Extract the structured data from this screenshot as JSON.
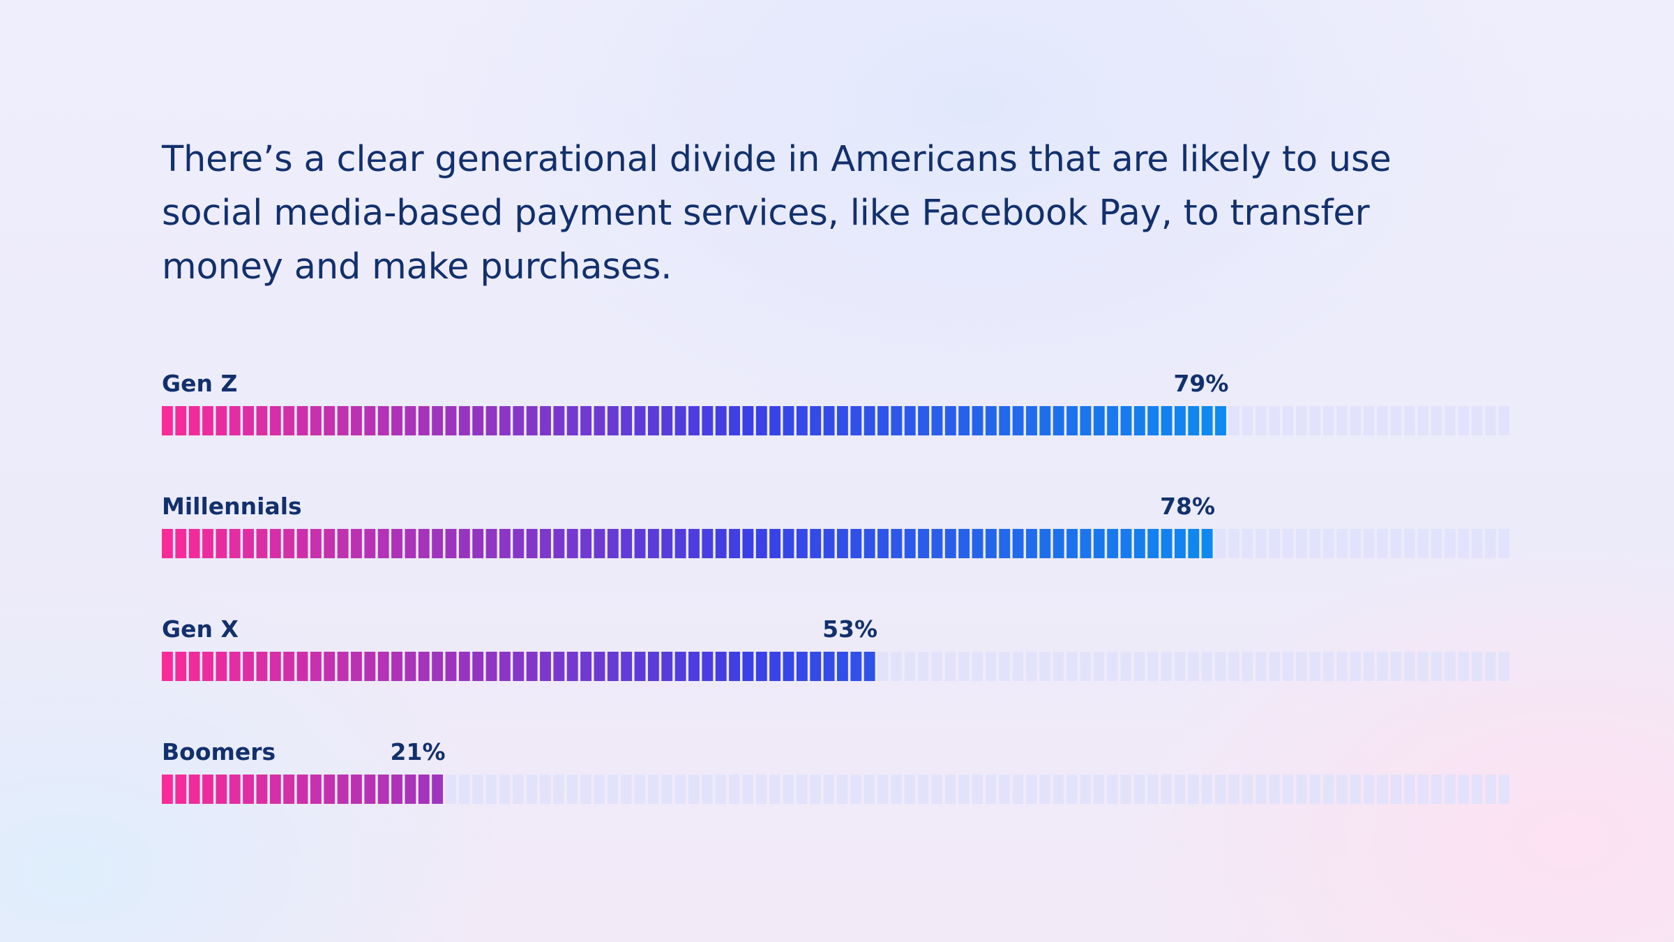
{
  "headline": "There’s a clear generational divide in Americans that are likely to use social media-based payment services, like Facebook Pay, to transfer money and make purchases.",
  "chart_data": {
    "type": "bar",
    "orientation": "horizontal",
    "title": "There’s a clear generational divide in Americans that are likely to use social media-based payment services, like Facebook Pay, to transfer money and make purchases.",
    "categories": [
      "Gen Z",
      "Millennials",
      "Gen X",
      "Boomers"
    ],
    "values": [
      79,
      78,
      53,
      21
    ],
    "value_labels": [
      "79%",
      "78%",
      "53%",
      "21%"
    ],
    "unit": "%",
    "xlim": [
      0,
      100
    ],
    "grid": false,
    "legend": "none",
    "colors": {
      "gradient_start": "#fc2a98",
      "gradient_mid": "#3b3fe6",
      "gradient_end": "#0d8bf0",
      "track": "#dfe1fb",
      "text": "#12306c"
    }
  }
}
